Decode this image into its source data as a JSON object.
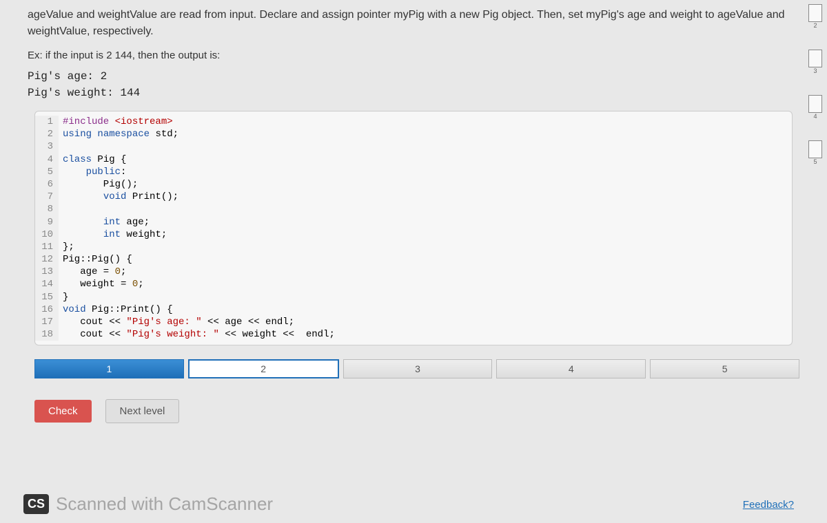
{
  "problem": {
    "description": "ageValue and weightValue are read from input. Declare and assign pointer myPig with a new Pig object. Then, set myPig's age and weight to ageValue and weightValue, respectively.",
    "example_label": "Ex: if the input is 2  144, then the output is:",
    "example_output": "Pig's age: 2\nPig's weight: 144"
  },
  "code": {
    "lines": [
      {
        "n": 1,
        "html": "<span class='kw-preproc'>#include</span> <span class='str'>&lt;iostream&gt;</span>"
      },
      {
        "n": 2,
        "html": "<span class='kw-blue'>using</span> <span class='kw-blue'>namespace</span> std;"
      },
      {
        "n": 3,
        "html": ""
      },
      {
        "n": 4,
        "html": "<span class='kw-blue'>class</span> Pig {"
      },
      {
        "n": 5,
        "html": "    <span class='kw-blue'>public</span>:"
      },
      {
        "n": 6,
        "html": "       Pig();"
      },
      {
        "n": 7,
        "html": "       <span class='kw-blue'>void</span> Print();"
      },
      {
        "n": 8,
        "html": ""
      },
      {
        "n": 9,
        "html": "       <span class='kw-blue'>int</span> age;"
      },
      {
        "n": 10,
        "html": "       <span class='kw-blue'>int</span> weight;"
      },
      {
        "n": 11,
        "html": "};"
      },
      {
        "n": 12,
        "html": "Pig::Pig() {"
      },
      {
        "n": 13,
        "html": "   age = <span class='num'>0</span>;"
      },
      {
        "n": 14,
        "html": "   weight = <span class='num'>0</span>;"
      },
      {
        "n": 15,
        "html": "}"
      },
      {
        "n": 16,
        "html": "<span class='kw-blue'>void</span> Pig::Print() {"
      },
      {
        "n": 17,
        "html": "   cout &lt;&lt; <span class='str'>\"Pig's age: \"</span> &lt;&lt; age &lt;&lt; endl;"
      },
      {
        "n": 18,
        "html": "   cout &lt;&lt; <span class='str'>\"Pig's weight: \"</span> &lt;&lt; weight &lt;&lt;  endl;"
      }
    ]
  },
  "pagination": {
    "tabs": [
      {
        "label": "1",
        "active": true
      },
      {
        "label": "2",
        "outline": true
      },
      {
        "label": "3"
      },
      {
        "label": "4"
      },
      {
        "label": "5"
      }
    ]
  },
  "buttons": {
    "check": "Check",
    "next": "Next level"
  },
  "watermark": {
    "badge": "CS",
    "text": "Scanned with CamScanner"
  },
  "feedback": "Feedback?",
  "side_thumbs": [
    "2",
    "3",
    "4",
    "5"
  ]
}
